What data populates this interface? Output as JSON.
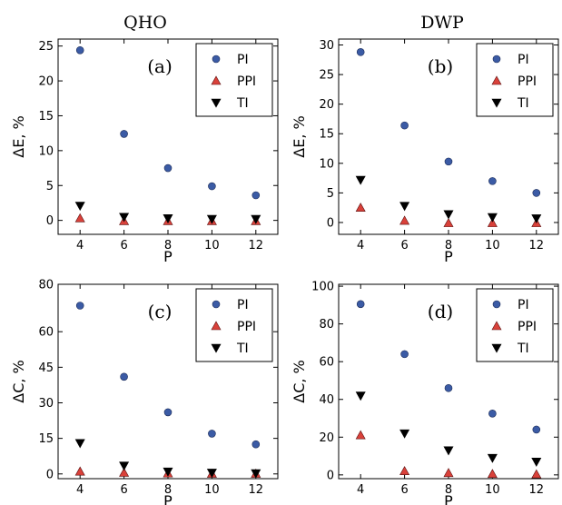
{
  "figure": {
    "column_titles": [
      "QHO",
      "DWP"
    ]
  },
  "chart_data": [
    {
      "type": "scatter",
      "panel_label": "(a)",
      "xlabel": "P",
      "ylabel": "ΔE, %",
      "x": [
        4,
        6,
        8,
        10,
        12
      ],
      "xticks": [
        4,
        6,
        8,
        10,
        12
      ],
      "xlim": [
        3,
        13
      ],
      "yticks": [
        0,
        5,
        10,
        15,
        20,
        25
      ],
      "ylim": [
        -2,
        26
      ],
      "legend_position": "top-right",
      "series": [
        {
          "name": "PI",
          "marker": "circle",
          "color": "#3b5ba5",
          "values": [
            24.4,
            12.4,
            7.5,
            4.9,
            3.6
          ]
        },
        {
          "name": "PPI",
          "marker": "triangle-up",
          "color": "#d9413a",
          "values": [
            0.3,
            -0.1,
            -0.1,
            -0.1,
            -0.1
          ]
        },
        {
          "name": "TI",
          "marker": "triangle-down",
          "color": "#000000",
          "values": [
            2.1,
            0.5,
            0.3,
            0.2,
            0.2
          ]
        }
      ]
    },
    {
      "type": "scatter",
      "panel_label": "(b)",
      "xlabel": "P",
      "ylabel": "ΔE, %",
      "x": [
        4,
        6,
        8,
        10,
        12
      ],
      "xticks": [
        4,
        6,
        8,
        10,
        12
      ],
      "xlim": [
        3,
        13
      ],
      "yticks": [
        0,
        5,
        10,
        15,
        20,
        25,
        30
      ],
      "ylim": [
        -2,
        31
      ],
      "legend_position": "top-right",
      "series": [
        {
          "name": "PI",
          "marker": "circle",
          "color": "#3b5ba5",
          "values": [
            28.8,
            16.4,
            10.3,
            7.0,
            5.0
          ]
        },
        {
          "name": "PPI",
          "marker": "triangle-up",
          "color": "#d9413a",
          "values": [
            2.5,
            0.3,
            -0.1,
            -0.1,
            -0.1
          ]
        },
        {
          "name": "TI",
          "marker": "triangle-down",
          "color": "#000000",
          "values": [
            7.2,
            2.8,
            1.4,
            0.9,
            0.7
          ]
        }
      ]
    },
    {
      "type": "scatter",
      "panel_label": "(c)",
      "xlabel": "P",
      "ylabel": "ΔC, %",
      "x": [
        4,
        6,
        8,
        10,
        12
      ],
      "xticks": [
        4,
        6,
        8,
        10,
        12
      ],
      "xlim": [
        3,
        13
      ],
      "yticks": [
        0,
        15,
        30,
        45,
        60,
        80
      ],
      "ylim": [
        -2,
        80
      ],
      "legend_position": "top-right",
      "series": [
        {
          "name": "PI",
          "marker": "circle",
          "color": "#3b5ba5",
          "values": [
            71,
            41,
            26,
            17,
            12.5
          ]
        },
        {
          "name": "PPI",
          "marker": "triangle-up",
          "color": "#d9413a",
          "values": [
            1.0,
            0.5,
            0.2,
            0.1,
            0.1
          ]
        },
        {
          "name": "TI",
          "marker": "triangle-down",
          "color": "#000000",
          "values": [
            13,
            3.5,
            1.0,
            0.5,
            0.3
          ]
        }
      ]
    },
    {
      "type": "scatter",
      "panel_label": "(d)",
      "xlabel": "P",
      "ylabel": "ΔC, %",
      "x": [
        4,
        6,
        8,
        10,
        12
      ],
      "xticks": [
        4,
        6,
        8,
        10,
        12
      ],
      "xlim": [
        3,
        13
      ],
      "yticks": [
        0,
        20,
        40,
        60,
        80,
        100
      ],
      "ylim": [
        -2,
        101
      ],
      "legend_position": "top-right",
      "series": [
        {
          "name": "PI",
          "marker": "circle",
          "color": "#3b5ba5",
          "values": [
            90.5,
            64,
            46,
            32.5,
            24
          ]
        },
        {
          "name": "PPI",
          "marker": "triangle-up",
          "color": "#d9413a",
          "values": [
            21,
            2.0,
            1.0,
            0.5,
            0.3
          ]
        },
        {
          "name": "TI",
          "marker": "triangle-down",
          "color": "#000000",
          "values": [
            42,
            22,
            13,
            9,
            7
          ]
        }
      ]
    }
  ]
}
